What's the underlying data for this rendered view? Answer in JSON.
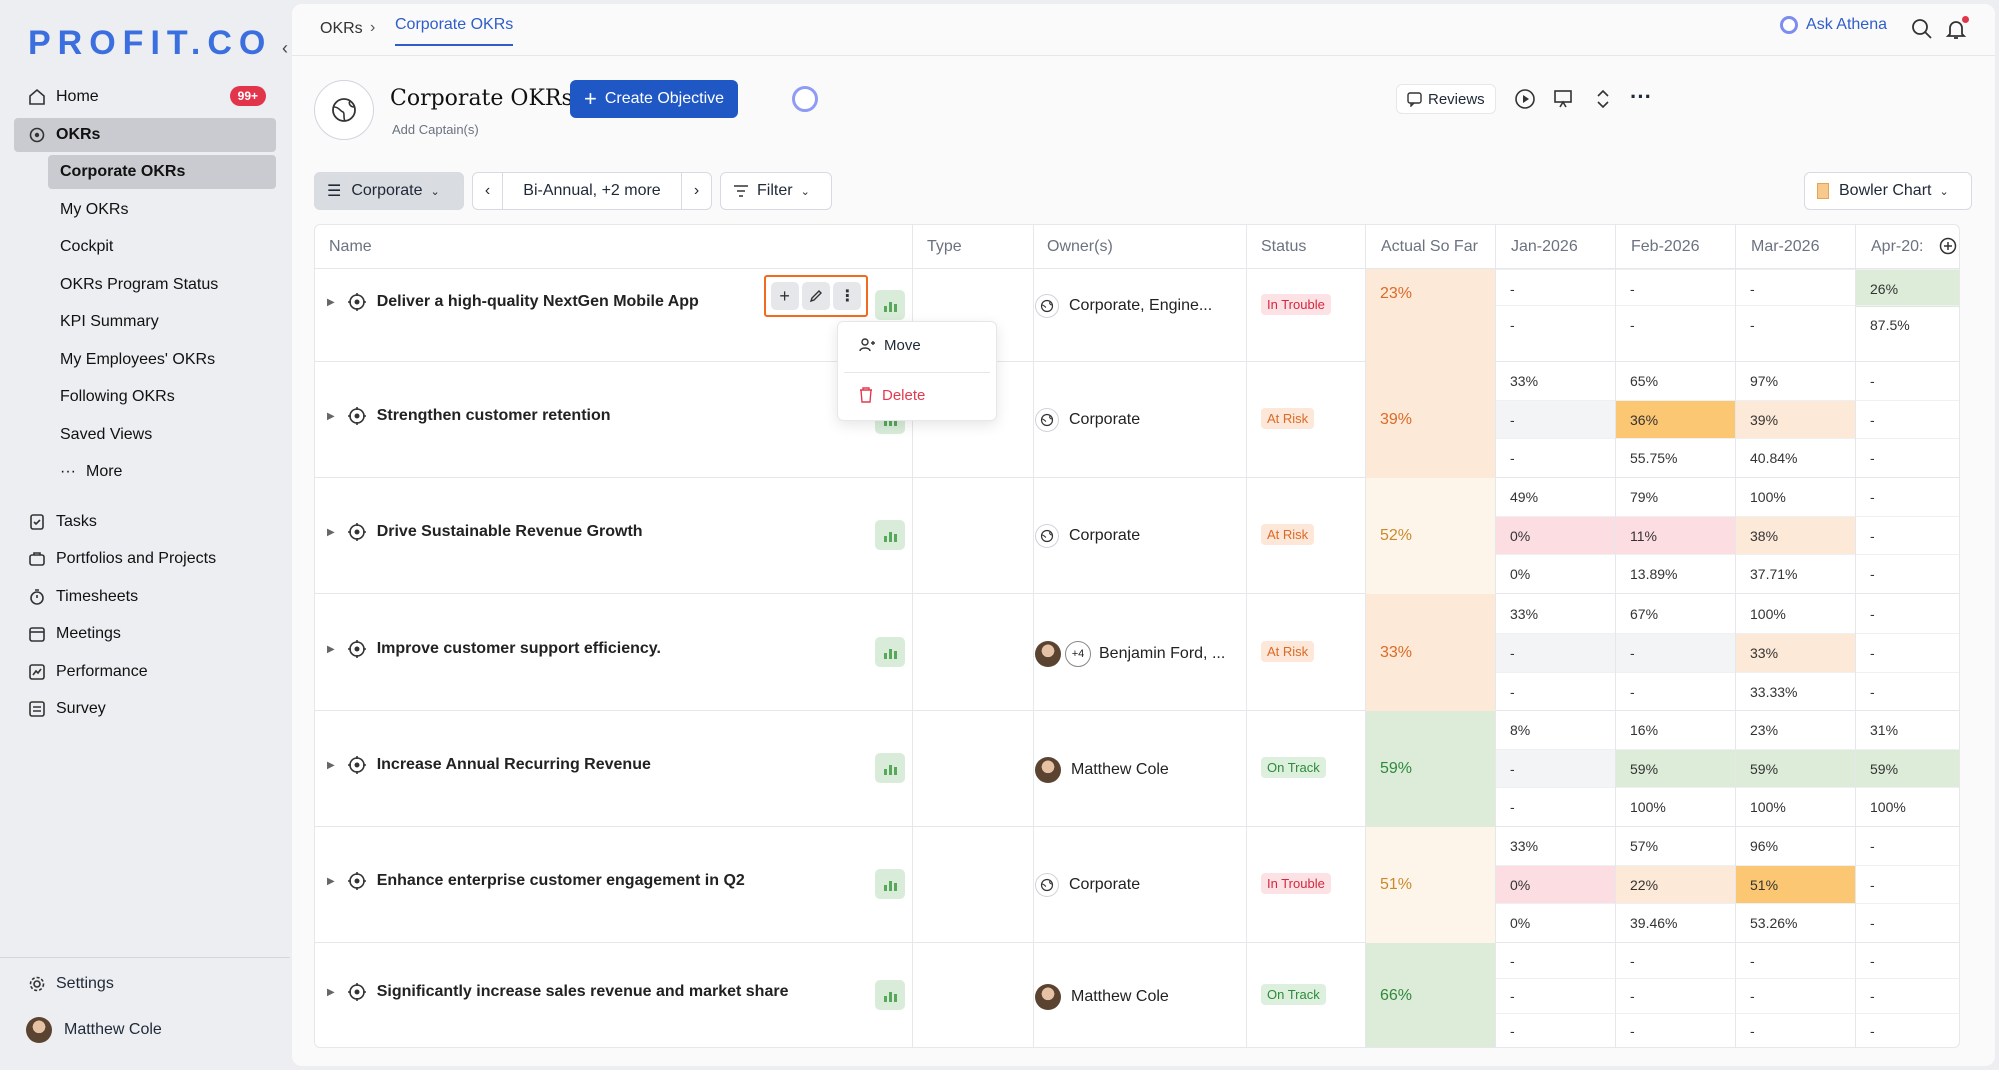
{
  "app": {
    "logo": "PROFIT.CO"
  },
  "sidebar": {
    "home": "Home",
    "home_badge": "99+",
    "okrs": "OKRs",
    "sub": [
      "Corporate OKRs",
      "My OKRs",
      "Cockpit",
      "OKRs Program Status",
      "KPI Summary",
      "My Employees' OKRs",
      "Following OKRs",
      "Saved Views"
    ],
    "more": "More",
    "items": [
      "Tasks",
      "Portfolios and Projects",
      "Timesheets",
      "Meetings",
      "Performance",
      "Survey"
    ],
    "settings": "Settings",
    "user": "Matthew Cole"
  },
  "topbar": {
    "crumb": "OKRs",
    "sep": "›",
    "active": "Corporate OKRs",
    "ask": "Ask Athena"
  },
  "header": {
    "title": "Corporate OKRs",
    "captain": "Add Captain(s)",
    "create": "Create Objective",
    "create_plus": "+",
    "reviews": "Reviews"
  },
  "toolbar": {
    "view": "Corporate",
    "period": "Bi-Annual, +2 more",
    "filter": "Filter",
    "bowler": "Bowler Chart"
  },
  "table": {
    "columns": [
      "Name",
      "Type",
      "Owner(s)",
      "Status",
      "Actual So Far",
      "Jan-2026",
      "Feb-2026",
      "Mar-2026",
      "Apr-20:"
    ],
    "rows": [
      {
        "name": "Deliver a high-quality NextGen Mobile App",
        "owner": "Corporate, Engine...",
        "status": "In Trouble",
        "actual": "23%",
        "cells": [
          [
            "",
            "",
            "",
            ""
          ],
          [
            "-",
            "-",
            "-",
            "26%"
          ],
          [
            "-",
            "-",
            "-",
            "87.5%"
          ]
        ]
      },
      {
        "name": "Strengthen customer retention",
        "owner": "Corporate",
        "status": "At Risk",
        "actual": "39%",
        "cells": [
          [
            "33%",
            "65%",
            "97%",
            "-"
          ],
          [
            "-",
            "36%",
            "39%",
            "-"
          ],
          [
            "-",
            "55.75%",
            "40.84%",
            "-"
          ]
        ]
      },
      {
        "name": "Drive Sustainable Revenue Growth",
        "owner": "Corporate",
        "status": "At Risk",
        "actual": "52%",
        "cells": [
          [
            "49%",
            "79%",
            "100%",
            "-"
          ],
          [
            "0%",
            "11%",
            "38%",
            "-"
          ],
          [
            "0%",
            "13.89%",
            "37.71%",
            "-"
          ]
        ]
      },
      {
        "name": "Improve customer support efficiency.",
        "owner": "Benjamin Ford, ...",
        "owner_extra": "+4",
        "status": "At Risk",
        "actual": "33%",
        "cells": [
          [
            "33%",
            "67%",
            "100%",
            "-"
          ],
          [
            "-",
            "-",
            "33%",
            "-"
          ],
          [
            "-",
            "-",
            "33.33%",
            "-"
          ]
        ]
      },
      {
        "name": "Increase Annual Recurring Revenue",
        "owner": "Matthew Cole",
        "status": "On Track",
        "actual": "59%",
        "cells": [
          [
            "8%",
            "16%",
            "23%",
            "31%"
          ],
          [
            "-",
            "59%",
            "59%",
            "59%"
          ],
          [
            "-",
            "100%",
            "100%",
            "100%"
          ]
        ]
      },
      {
        "name": "Enhance enterprise customer engagement in Q2",
        "owner": "Corporate",
        "status": "In Trouble",
        "actual": "51%",
        "cells": [
          [
            "33%",
            "57%",
            "96%",
            "-"
          ],
          [
            "0%",
            "22%",
            "51%",
            "-"
          ],
          [
            "0%",
            "39.46%",
            "53.26%",
            "-"
          ]
        ]
      },
      {
        "name": "Significantly increase sales revenue and market share",
        "owner": "Matthew Cole",
        "status": "On Track",
        "actual": "66%",
        "cells": [
          [
            "-",
            "-",
            "-",
            "-"
          ],
          [
            "-",
            "-",
            "-",
            "-"
          ],
          [
            "-",
            "-",
            "-",
            "-"
          ]
        ]
      }
    ]
  },
  "menu": {
    "move": "Move",
    "delete": "Delete"
  },
  "colors": {
    "accent": "#1f57c5",
    "trouble": "#d3283e",
    "risk": "#db6a26",
    "track": "#2f8a3b",
    "actual_red_bg": "#fde9d8",
    "actual_light_bg": "#fef5ea",
    "actual_green_bg": "#dcecd9"
  }
}
